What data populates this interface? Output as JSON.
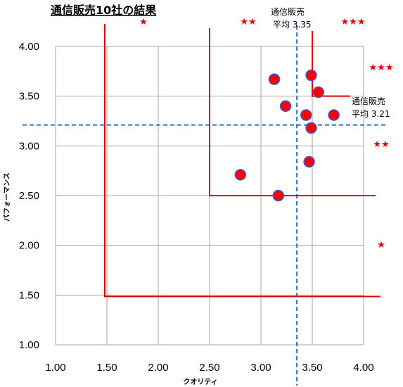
{
  "chart_data": {
    "type": "scatter",
    "title": "通信販売10社の結果",
    "xlabel": "クオリティ",
    "ylabel": "パフォーマンス",
    "xlim": [
      1.0,
      4.0
    ],
    "ylim": [
      1.0,
      4.0
    ],
    "x_ticks": [
      "1.00",
      "1.50",
      "2.00",
      "2.50",
      "3.00",
      "3.50",
      "4.00"
    ],
    "y_ticks": [
      "1.00",
      "1.50",
      "2.00",
      "2.50",
      "3.00",
      "3.50",
      "4.00"
    ],
    "grid": true,
    "colors": {
      "point": "#ff0000",
      "point_edge": "#3a5fcd",
      "threshold": "#e00000",
      "average": "#2e6fd0",
      "grid": "#a6a6a6"
    },
    "points": [
      {
        "x": 2.8,
        "y": 2.71
      },
      {
        "x": 3.13,
        "y": 3.67
      },
      {
        "x": 3.17,
        "y": 2.5
      },
      {
        "x": 3.24,
        "y": 3.4
      },
      {
        "x": 3.44,
        "y": 3.31
      },
      {
        "x": 3.47,
        "y": 2.84
      },
      {
        "x": 3.49,
        "y": 3.71
      },
      {
        "x": 3.49,
        "y": 3.18
      },
      {
        "x": 3.56,
        "y": 3.54
      },
      {
        "x": 3.71,
        "y": 3.31
      }
    ],
    "average_x": {
      "value": 3.35,
      "label_line1": "通信販売",
      "label_line2": "平均 3.35"
    },
    "average_y": {
      "value": 3.21,
      "label_line1": "通信販売",
      "label_line2": "平均 3.21"
    },
    "rating_brackets": [
      {
        "x_from": 1.5,
        "y_from": 1.5,
        "x_star": "★",
        "y_star": "★"
      },
      {
        "x_from": 2.5,
        "y_from": 2.5,
        "x_star": "★★",
        "y_star": "★★"
      },
      {
        "x_from": 3.5,
        "y_from": 3.5,
        "x_star": "★★★",
        "y_star": "★★★"
      }
    ]
  }
}
